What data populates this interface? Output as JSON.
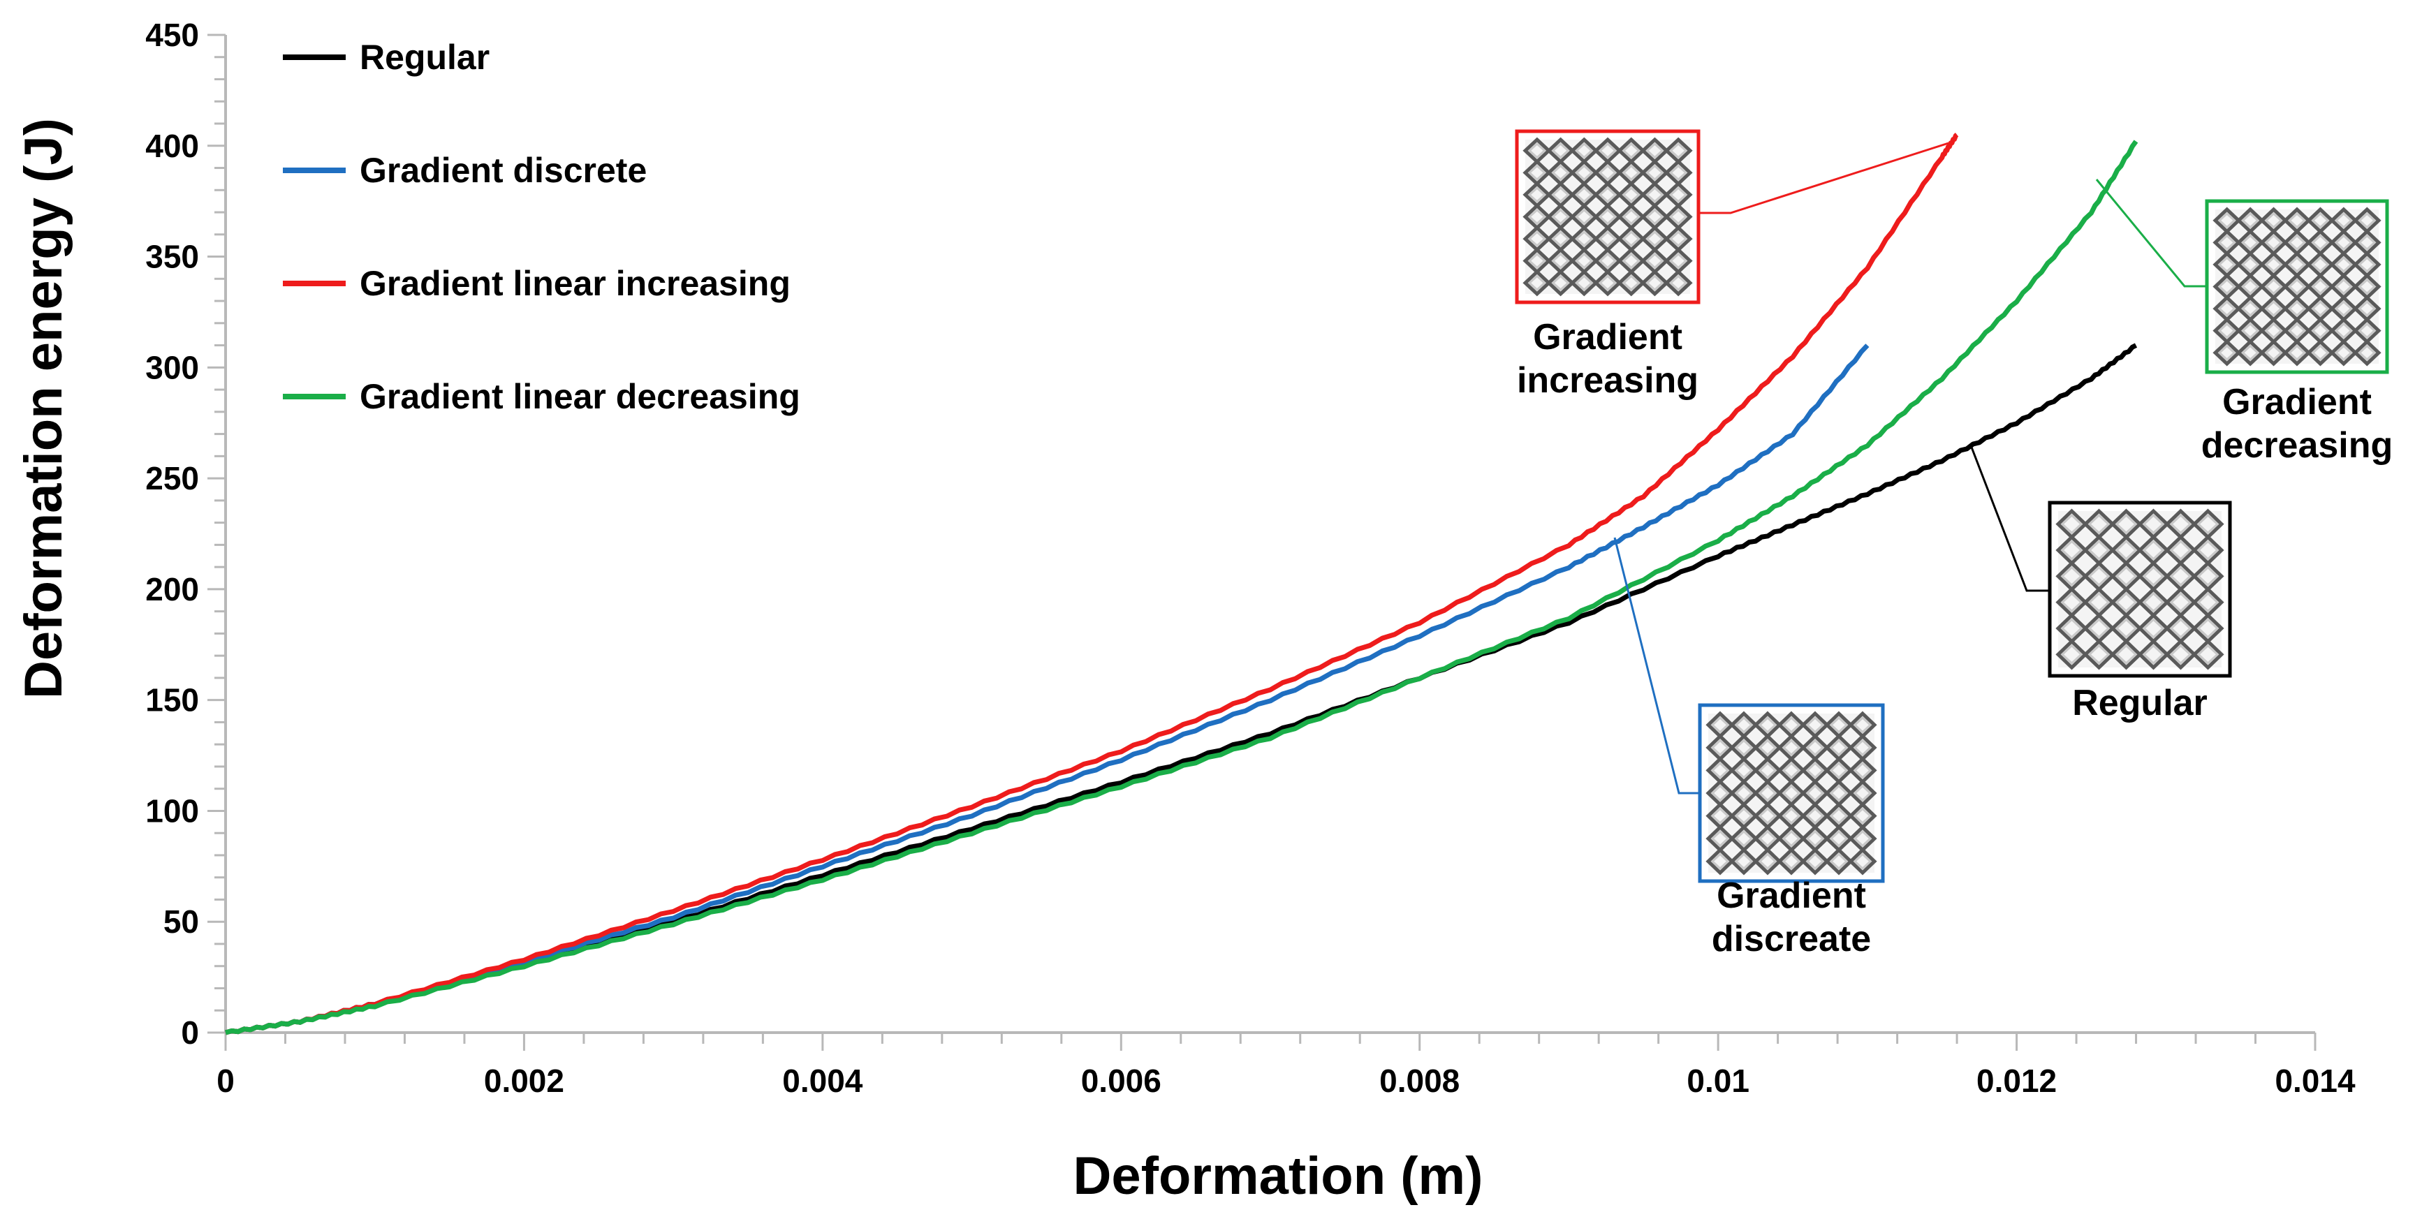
{
  "chart_data": {
    "type": "line",
    "xlabel": "Deformation (m)",
    "ylabel": "Deformation energy (J)",
    "xlim": [
      0,
      0.014
    ],
    "ylim": [
      0,
      450
    ],
    "x_ticks": [
      "0",
      "0.002",
      "0.004",
      "0.006",
      "0.008",
      "0.01",
      "0.012",
      "0.014"
    ],
    "y_ticks": [
      "0",
      "50",
      "100",
      "150",
      "200",
      "250",
      "300",
      "350",
      "400",
      "450"
    ],
    "x_tick_values": [
      0,
      0.002,
      0.004,
      0.006,
      0.008,
      0.01,
      0.012,
      0.014
    ],
    "y_tick_values": [
      0,
      50,
      100,
      150,
      200,
      250,
      300,
      350,
      400,
      450
    ],
    "grid": false,
    "legend_position": "top-left",
    "series": [
      {
        "name": "Regular",
        "color": "#000000",
        "x": [
          0,
          0.0005,
          0.001,
          0.002,
          0.003,
          0.004,
          0.005,
          0.006,
          0.007,
          0.008,
          0.009,
          0.01,
          0.0105,
          0.011,
          0.0115,
          0.012,
          0.0125,
          0.0128
        ],
        "y": [
          0,
          5,
          13,
          32,
          50,
          71,
          92,
          113,
          135,
          160,
          185,
          215,
          229,
          243,
          258,
          275,
          295,
          310
        ]
      },
      {
        "name": "Gradient discrete",
        "color": "#1f6fc1",
        "x": [
          0,
          0.0005,
          0.001,
          0.002,
          0.003,
          0.004,
          0.005,
          0.006,
          0.007,
          0.008,
          0.009,
          0.0095,
          0.01,
          0.0105,
          0.011
        ],
        "y": [
          0,
          5,
          13,
          32,
          52,
          75,
          98,
          123,
          150,
          179,
          210,
          228,
          247,
          270,
          310
        ]
      },
      {
        "name": "Gradient linear  increasing",
        "color": "#ee1c1c",
        "x": [
          0,
          0.0005,
          0.001,
          0.002,
          0.003,
          0.004,
          0.005,
          0.006,
          0.007,
          0.008,
          0.009,
          0.0095,
          0.01,
          0.0105,
          0.011,
          0.0115,
          0.0116
        ],
        "y": [
          0,
          5,
          13,
          33,
          55,
          78,
          102,
          127,
          155,
          185,
          220,
          242,
          272,
          305,
          345,
          395,
          405
        ]
      },
      {
        "name": "Gradient linear decreasing",
        "color": "#1aae48",
        "x": [
          0,
          0.0005,
          0.001,
          0.002,
          0.003,
          0.004,
          0.005,
          0.006,
          0.007,
          0.008,
          0.009,
          0.01,
          0.0105,
          0.011,
          0.0115,
          0.012,
          0.0125,
          0.0128
        ],
        "y": [
          0,
          5,
          12,
          30,
          49,
          69,
          90,
          111,
          133,
          160,
          187,
          222,
          242,
          265,
          295,
          330,
          370,
          402
        ]
      }
    ],
    "annotations": [
      {
        "label": "Gradient increasing",
        "lines": [
          "Gradient",
          "increasing"
        ],
        "color": "#ee1c1c"
      },
      {
        "label": "Gradient decreasing",
        "lines": [
          "Gradient",
          "decreasing"
        ],
        "color": "#1aae48"
      },
      {
        "label": "Regular",
        "lines": [
          "Regular"
        ],
        "color": "#000000"
      },
      {
        "label": "Gradient discreate",
        "lines": [
          "Gradient",
          "discreate"
        ],
        "color": "#1f6fc1"
      }
    ]
  }
}
